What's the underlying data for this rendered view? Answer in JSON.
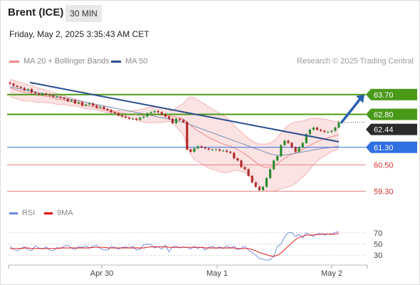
{
  "header": {
    "title": "Brent (ICE)",
    "timeframe": "30 MIN",
    "timestamp": "Friday, May 2, 2025 3:35:43 AM CET"
  },
  "legend": {
    "bollinger": "MA 20 + Bollinger Bands",
    "ma50": "MA 50",
    "credit": "Research © 2025 Trading Central"
  },
  "colors": {
    "bollinger": "#f08a8a",
    "ma50": "#2a4f8f",
    "green_level": "#4a9a1a",
    "blue_level": "#2f6fe0",
    "red_level": "#e08080",
    "candle_up": "#2f8a2f",
    "candle_down": "#b02a2a",
    "rsi": "#6a8ae0",
    "rsi_ma": "#e00000"
  },
  "chart_data": [
    {
      "type": "candlestick",
      "ylim": [
        58.6,
        64.6
      ],
      "x_tick_labels": [
        "Apr 30",
        "May 1",
        "May 2"
      ],
      "levels": [
        {
          "value": 63.7,
          "label": "63.70",
          "color": "#4a9a1a",
          "kind": "resistance"
        },
        {
          "value": 62.8,
          "label": "62.80",
          "color": "#4a9a1a",
          "kind": "resistance"
        },
        {
          "value": 62.44,
          "label": "62.44",
          "color": "#2b2b2b",
          "kind": "last"
        },
        {
          "value": 61.3,
          "label": "61.30",
          "color": "#2f6fe0",
          "kind": "pivot"
        },
        {
          "value": 60.5,
          "label": "60.50",
          "color": "#d23030",
          "kind": "support"
        },
        {
          "value": 59.3,
          "label": "59.30",
          "color": "#d23030",
          "kind": "support"
        }
      ],
      "close": [
        64.2,
        64.1,
        64.05,
        64.0,
        63.9,
        63.95,
        63.8,
        63.75,
        63.7,
        63.75,
        63.7,
        63.65,
        63.6,
        63.6,
        63.55,
        63.5,
        63.4,
        63.45,
        63.3,
        63.35,
        63.2,
        63.25,
        63.3,
        63.2,
        63.1,
        63.15,
        63.05,
        63.0,
        62.9,
        62.85,
        62.75,
        62.7,
        62.65,
        62.6,
        62.6,
        62.55,
        62.65,
        62.7,
        62.85,
        62.9,
        62.95,
        62.9,
        62.8,
        62.7,
        62.6,
        62.4,
        62.6,
        62.55,
        62.45,
        61.2,
        61.1,
        61.25,
        61.35,
        61.3,
        61.25,
        61.2,
        61.2,
        61.2,
        61.15,
        61.15,
        61.1,
        61.05,
        60.8,
        60.7,
        60.4,
        60.3,
        60.0,
        59.7,
        59.5,
        59.35,
        59.5,
        59.9,
        60.3,
        60.7,
        60.9,
        61.4,
        61.6,
        61.5,
        61.3,
        61.1,
        61.3,
        61.5,
        61.9,
        62.1,
        62.2,
        62.1,
        62.05,
        62.0,
        62.0,
        62.05,
        62.2,
        62.44
      ],
      "ma20": [
        64.0,
        63.95,
        63.9,
        63.85,
        63.8,
        63.78,
        63.75,
        63.7,
        63.68,
        63.65,
        63.62,
        63.6,
        63.55,
        63.5,
        63.48,
        63.45,
        63.4,
        63.38,
        63.35,
        63.3,
        63.25,
        63.2,
        63.18,
        63.15,
        63.1,
        63.05,
        63.0,
        62.97,
        62.93,
        62.9,
        62.87,
        62.85,
        62.83,
        62.81,
        62.8,
        62.78,
        62.77,
        62.77,
        62.77,
        62.77,
        62.78,
        62.78,
        62.77,
        62.76,
        62.74,
        62.71,
        62.68,
        62.64,
        62.58,
        62.45,
        62.3,
        62.15,
        62.05,
        61.95,
        61.85,
        61.75,
        61.68,
        61.6,
        61.52,
        61.45,
        61.4,
        61.35,
        61.28,
        61.2,
        61.1,
        61.0,
        60.88,
        60.75,
        60.62,
        60.5,
        60.42,
        60.38,
        60.4,
        60.46,
        60.55,
        60.68,
        60.8,
        60.9,
        60.98,
        61.05,
        61.12,
        61.2,
        61.28,
        61.38,
        61.48,
        61.56,
        61.62,
        61.68,
        61.73,
        61.78,
        61.83,
        61.88
      ],
      "upper_band": [
        64.4,
        64.35,
        64.3,
        64.25,
        64.2,
        64.15,
        64.1,
        64.05,
        64.0,
        63.95,
        63.9,
        63.85,
        63.8,
        63.75,
        63.7,
        63.65,
        63.6,
        63.55,
        63.5,
        63.45,
        63.4,
        63.35,
        63.3,
        63.25,
        63.2,
        63.15,
        63.1,
        63.05,
        63.0,
        62.98,
        62.97,
        62.96,
        62.96,
        62.96,
        62.97,
        62.99,
        63.02,
        63.06,
        63.1,
        63.12,
        63.13,
        63.12,
        63.1,
        63.05,
        63.0,
        62.95,
        63.1,
        63.2,
        63.3,
        63.5,
        63.6,
        63.55,
        63.45,
        63.35,
        63.25,
        63.15,
        63.05,
        62.95,
        62.85,
        62.75,
        62.65,
        62.5,
        62.3,
        62.15,
        62.0,
        61.85,
        61.7,
        61.6,
        61.5,
        61.45,
        61.45,
        61.45,
        61.5,
        61.6,
        61.75,
        61.95,
        62.15,
        62.3,
        62.4,
        62.45,
        62.45,
        62.5,
        62.55,
        62.6,
        62.62,
        62.62,
        62.6,
        62.58,
        62.55,
        62.5,
        62.48,
        62.5
      ],
      "lower_band": [
        63.6,
        63.55,
        63.5,
        63.45,
        63.4,
        63.4,
        63.4,
        63.35,
        63.35,
        63.35,
        63.33,
        63.33,
        63.3,
        63.25,
        63.25,
        63.25,
        63.2,
        63.2,
        63.18,
        63.15,
        63.1,
        63.05,
        63.05,
        63.03,
        63.0,
        62.95,
        62.9,
        62.88,
        62.85,
        62.8,
        62.75,
        62.72,
        62.68,
        62.64,
        62.6,
        62.55,
        62.5,
        62.45,
        62.42,
        62.42,
        62.43,
        62.43,
        62.42,
        62.45,
        62.48,
        62.45,
        62.25,
        62.05,
        61.85,
        61.4,
        61.0,
        60.75,
        60.65,
        60.55,
        60.45,
        60.35,
        60.3,
        60.25,
        60.2,
        60.15,
        60.15,
        60.2,
        60.25,
        60.25,
        60.2,
        60.15,
        60.05,
        59.9,
        59.75,
        59.55,
        59.4,
        59.3,
        59.3,
        59.3,
        59.35,
        59.4,
        59.45,
        59.5,
        59.55,
        59.65,
        59.8,
        59.95,
        60.1,
        60.3,
        60.5,
        60.65,
        60.8,
        60.9,
        61.0,
        61.1,
        61.15,
        61.25
      ],
      "ma50": [
        64.05,
        64.02,
        63.98,
        63.95,
        63.92,
        63.88,
        63.85,
        63.82,
        63.78,
        63.75,
        63.72,
        63.68,
        63.65,
        63.62,
        63.58,
        63.55,
        63.52,
        63.48,
        63.45,
        63.42,
        63.38,
        63.35,
        63.32,
        63.28,
        63.25,
        63.22,
        63.18,
        63.15,
        63.12,
        63.08,
        63.05,
        63.02,
        62.98,
        62.95,
        62.92,
        62.88,
        62.85,
        62.82,
        62.78,
        62.75,
        62.72,
        62.68,
        62.65,
        62.62,
        62.58,
        62.55,
        62.52,
        62.48,
        62.44,
        62.38,
        62.32,
        62.26,
        62.2,
        62.14,
        62.08,
        62.02,
        61.96,
        61.9,
        61.84,
        61.78,
        61.72,
        61.66,
        61.6,
        61.54,
        61.48,
        61.42,
        61.36,
        61.3,
        61.24,
        61.18,
        61.12,
        61.06,
        61.0,
        60.96,
        60.94,
        60.94,
        60.95,
        60.97,
        61.0,
        61.03,
        61.06,
        61.09,
        61.12,
        61.15,
        61.18,
        61.21,
        61.24,
        61.26,
        61.28,
        61.3,
        61.32,
        61.34
      ],
      "trendline": {
        "from": 64.25,
        "to": 61.55
      },
      "forecast_arrow": {
        "from": 62.44,
        "to": 63.7
      }
    },
    {
      "type": "line",
      "name": "RSI",
      "ylim": [
        15,
        85
      ],
      "y_ticks": [
        70,
        50,
        30
      ],
      "rsi": [
        46,
        40,
        38,
        42,
        45,
        40,
        38,
        47,
        43,
        41,
        45,
        39,
        38,
        44,
        42,
        46,
        48,
        43,
        40,
        45,
        44,
        47,
        43,
        46,
        48,
        42,
        40,
        39,
        46,
        44,
        41,
        44,
        45,
        43,
        46,
        39,
        41,
        49,
        50,
        49,
        43,
        45,
        41,
        48,
        36,
        45,
        46,
        43,
        45,
        44,
        41,
        46,
        42,
        45,
        39,
        44,
        46,
        42,
        45,
        42,
        47,
        43,
        46,
        40,
        42,
        46,
        39,
        35,
        30,
        24,
        23,
        21,
        22,
        28,
        46,
        50,
        63,
        70,
        71,
        63,
        67,
        61,
        70,
        66,
        64,
        68,
        69,
        66,
        68,
        67,
        71,
        72
      ],
      "rsi_ma": [
        42,
        42,
        42,
        42,
        43,
        43,
        42,
        42,
        42,
        42,
        42,
        42,
        42,
        42,
        43,
        43,
        43,
        43,
        43,
        43,
        43,
        43,
        43,
        44,
        44,
        44,
        44,
        43,
        43,
        43,
        43,
        43,
        43,
        43,
        43,
        43,
        43,
        43,
        44,
        45,
        45,
        45,
        45,
        45,
        44,
        44,
        44,
        44,
        44,
        44,
        44,
        44,
        44,
        44,
        43,
        43,
        43,
        43,
        43,
        43,
        43,
        43,
        43,
        42,
        42,
        42,
        42,
        40,
        38,
        35,
        33,
        31,
        29,
        28,
        30,
        34,
        40,
        46,
        52,
        58,
        62,
        64,
        66,
        66,
        66,
        67,
        67,
        68,
        68,
        68,
        68,
        69
      ]
    }
  ]
}
